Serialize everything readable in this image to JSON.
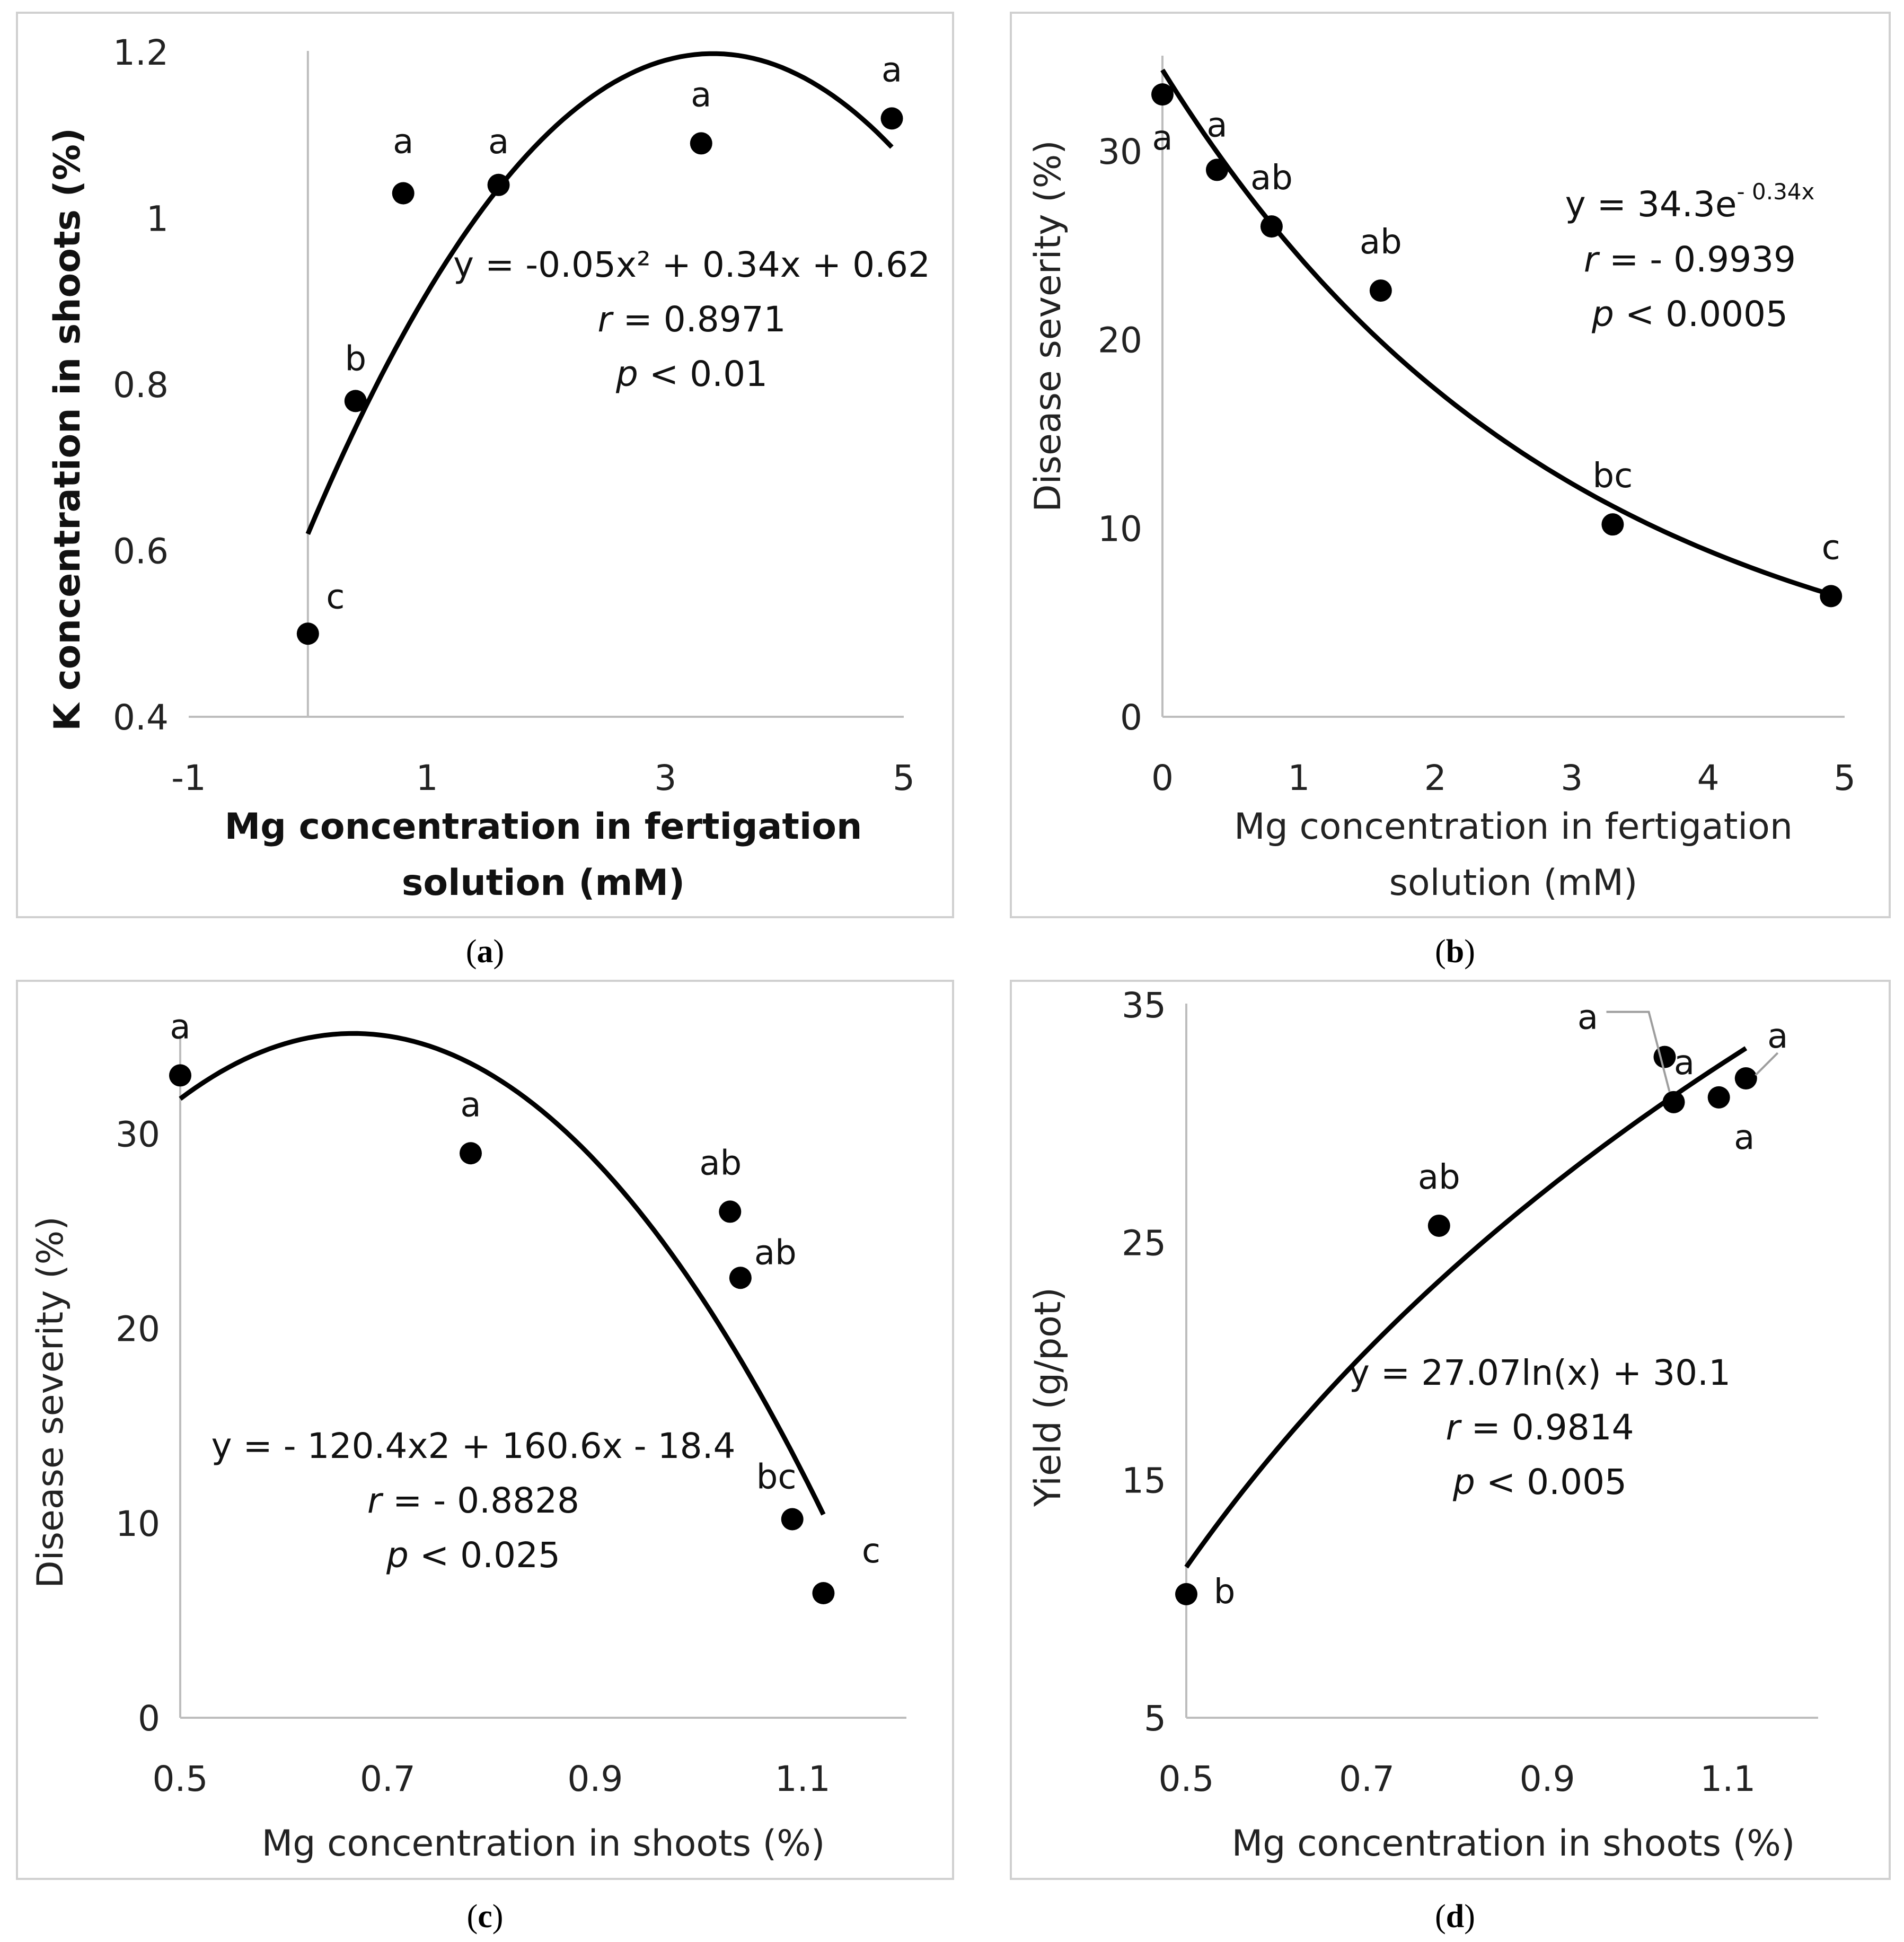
{
  "captions": [
    "a",
    "b",
    "c",
    "d"
  ],
  "chart_data": [
    {
      "panel": "a",
      "type": "scatter",
      "xlabel": [
        "Mg concentration in fertigation",
        "solution (mM)"
      ],
      "ylabel": "K concentration in shoots (%)",
      "xlim": [
        -1,
        5
      ],
      "ylim": [
        0.4,
        1.2
      ],
      "xticks": [
        -1,
        1,
        3,
        5
      ],
      "yticks": [
        0.4,
        0.6,
        0.8,
        1,
        1.2
      ],
      "ytick_labels": [
        "0.4",
        "0.6",
        "0.8",
        "1",
        "1.2"
      ],
      "x": [
        0,
        0.4,
        0.8,
        1.6,
        3.3,
        4.9
      ],
      "y": [
        0.5,
        0.78,
        1.03,
        1.04,
        1.09,
        1.12
      ],
      "point_labels": [
        "c",
        "b",
        "a",
        "a",
        "a",
        "a"
      ],
      "trend": {
        "kind": "poly2",
        "coef": [
          -0.05,
          0.34,
          0.62
        ],
        "xrange": [
          0,
          4.9
        ]
      },
      "equation_lines": [
        "y = -0.05x² + 0.34x + 0.62",
        "r = 0.8971",
        "p < 0.01"
      ]
    },
    {
      "panel": "b",
      "type": "scatter",
      "xlabel": [
        "Mg concentration in fertigation",
        "solution (mM)"
      ],
      "ylabel": "Disease severity (%)",
      "xlim": [
        0,
        5
      ],
      "ylim": [
        0,
        35
      ],
      "xticks": [
        0,
        1,
        2,
        3,
        4,
        5
      ],
      "yticks": [
        0,
        10,
        20,
        30
      ],
      "ytick_labels": [
        "0",
        "10",
        "20",
        "30"
      ],
      "x": [
        0,
        0.4,
        0.8,
        1.6,
        3.3,
        4.9
      ],
      "y": [
        33,
        29,
        26,
        22.6,
        10.2,
        6.4
      ],
      "point_labels": [
        "a",
        "a",
        "ab",
        "ab",
        "bc",
        "c"
      ],
      "trend": {
        "kind": "exp",
        "a": 34.3,
        "b": -0.34,
        "xrange": [
          0,
          4.9
        ]
      },
      "equation_lines": [
        "y = 34.3e",
        "- 0.34x",
        "r = - 0.9939",
        "p < 0.0005"
      ]
    },
    {
      "panel": "c",
      "type": "scatter",
      "xlabel": [
        "Mg concentration in shoots (%)"
      ],
      "ylabel": "Disease severity (%)",
      "xlim": [
        0.5,
        1.2
      ],
      "ylim": [
        0,
        35
      ],
      "xticks": [
        0.5,
        0.7,
        0.9,
        1.1
      ],
      "yticks": [
        0,
        10,
        20,
        30
      ],
      "ytick_labels": [
        "0",
        "10",
        "20",
        "30"
      ],
      "x": [
        0.5,
        0.78,
        1.03,
        1.04,
        1.09,
        1.12
      ],
      "y": [
        33,
        29,
        26,
        22.6,
        10.2,
        6.4
      ],
      "point_labels": [
        "a",
        "a",
        "ab",
        "ab",
        "bc",
        "c"
      ],
      "trend": {
        "kind": "poly2",
        "coef": [
          -120.4,
          160.6,
          -18.4
        ],
        "xrange": [
          0.5,
          1.12
        ]
      },
      "equation_lines": [
        "y = - 120.4x2 + 160.6x - 18.4",
        "r = - 0.8828",
        "p < 0.025"
      ]
    },
    {
      "panel": "d",
      "type": "scatter",
      "xlabel": [
        "Mg concentration in shoots (%)"
      ],
      "ylabel": "Yield (g/pot)",
      "xlim": [
        0.5,
        1.2
      ],
      "ylim": [
        5,
        35
      ],
      "xticks": [
        0.5,
        0.7,
        0.9,
        1.1
      ],
      "yticks": [
        5,
        15,
        25,
        35
      ],
      "ytick_labels": [
        "5",
        "15",
        "25",
        "35"
      ],
      "x": [
        0.5,
        0.78,
        1.03,
        1.04,
        1.09,
        1.12
      ],
      "y": [
        10.2,
        25.7,
        32.8,
        30.9,
        31.1,
        31.9
      ],
      "point_labels": [
        "b",
        "ab",
        "a",
        "a",
        "a",
        "a"
      ],
      "trend": {
        "kind": "log",
        "a": 27.07,
        "b": 30.1,
        "xrange": [
          0.5,
          1.12
        ]
      },
      "equation_lines": [
        "y = 27.07ln(x) + 30.1",
        "r = 0.9814",
        "p < 0.005"
      ]
    }
  ]
}
